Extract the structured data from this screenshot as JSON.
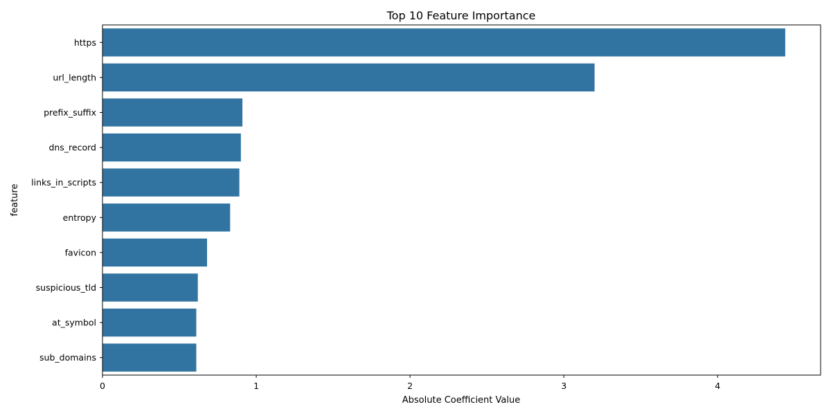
{
  "chart_data": {
    "type": "bar",
    "orientation": "horizontal",
    "title": "Top 10 Feature Importance",
    "xlabel": "Absolute Coefficient Value",
    "ylabel": "feature",
    "categories": [
      "https",
      "url_length",
      "prefix_suffix",
      "dns_record",
      "links_in_scripts",
      "entropy",
      "favicon",
      "suspicious_tld",
      "at_symbol",
      "sub_domains"
    ],
    "values": [
      4.44,
      3.2,
      0.91,
      0.9,
      0.89,
      0.83,
      0.68,
      0.62,
      0.61,
      0.61
    ],
    "xlim": [
      0,
      4.67
    ],
    "xticks": [
      0,
      1,
      2,
      3,
      4
    ],
    "grid": false,
    "bar_color": "#3274a1"
  }
}
